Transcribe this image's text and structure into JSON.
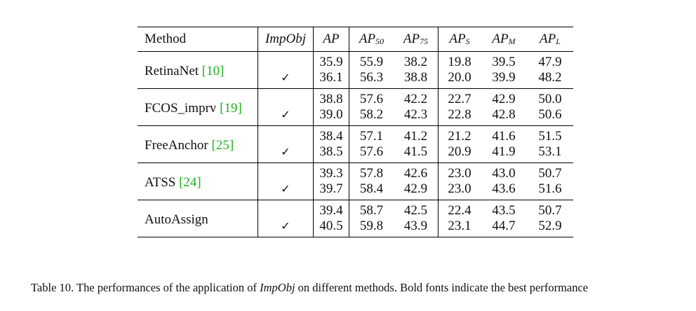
{
  "table": {
    "headers": {
      "method": "Method",
      "impobj": "ImpObj",
      "ap": "AP",
      "ap50_base": "AP",
      "ap50_sub": "50",
      "ap75_base": "AP",
      "ap75_sub": "75",
      "aps_base": "AP",
      "aps_sub": "S",
      "apm_base": "AP",
      "apm_sub": "M",
      "apl_base": "AP",
      "apl_sub": "L"
    },
    "check_mark": "✓",
    "methods": [
      {
        "name": "RetinaNet ",
        "cite": "[10]",
        "rows": [
          {
            "impobj": false,
            "values": [
              "35.9",
              "55.9",
              "38.2",
              "19.8",
              "39.5",
              "47.9"
            ],
            "bold": [
              false,
              false,
              false,
              false,
              false,
              false
            ]
          },
          {
            "impobj": true,
            "values": [
              "36.1",
              "56.3",
              "38.8",
              "20.0",
              "39.9",
              "48.2"
            ],
            "bold": [
              false,
              false,
              false,
              false,
              false,
              false
            ]
          }
        ]
      },
      {
        "name": "FCOS_imprv ",
        "cite": "[19]",
        "rows": [
          {
            "impobj": false,
            "values": [
              "38.8",
              "57.6",
              "42.2",
              "22.7",
              "42.9",
              "50.0"
            ],
            "bold": [
              false,
              false,
              false,
              false,
              false,
              false
            ]
          },
          {
            "impobj": true,
            "values": [
              "39.0",
              "58.2",
              "42.3",
              "22.8",
              "42.8",
              "50.6"
            ],
            "bold": [
              false,
              false,
              false,
              false,
              false,
              false
            ]
          }
        ]
      },
      {
        "name": "FreeAnchor ",
        "cite": "[25]",
        "rows": [
          {
            "impobj": false,
            "values": [
              "38.4",
              "57.1",
              "41.2",
              "21.2",
              "41.6",
              "51.5"
            ],
            "bold": [
              false,
              false,
              false,
              false,
              false,
              false
            ]
          },
          {
            "impobj": true,
            "values": [
              "38.5",
              "57.6",
              "41.5",
              "20.9",
              "41.9",
              "53.1"
            ],
            "bold": [
              false,
              false,
              false,
              false,
              false,
              true
            ]
          }
        ]
      },
      {
        "name": "ATSS ",
        "cite": "[24]",
        "rows": [
          {
            "impobj": false,
            "values": [
              "39.3",
              "57.8",
              "42.6",
              "23.0",
              "43.0",
              "50.7"
            ],
            "bold": [
              false,
              false,
              false,
              false,
              false,
              false
            ]
          },
          {
            "impobj": true,
            "values": [
              "39.7",
              "58.4",
              "42.9",
              "23.0",
              "43.6",
              "51.6"
            ],
            "bold": [
              false,
              false,
              false,
              false,
              false,
              false
            ]
          }
        ]
      },
      {
        "name": "AutoAssign",
        "cite": "",
        "rows": [
          {
            "impobj": false,
            "values": [
              "39.4",
              "58.7",
              "42.5",
              "22.4",
              "43.5",
              "50.7"
            ],
            "bold": [
              false,
              false,
              false,
              false,
              false,
              false
            ]
          },
          {
            "impobj": true,
            "values": [
              "40.5",
              "59.8",
              "43.9",
              "23.1",
              "44.7",
              "52.9"
            ],
            "bold": [
              true,
              true,
              true,
              true,
              true,
              false
            ]
          }
        ]
      }
    ]
  },
  "caption": {
    "prefix": "Table 10. The performances of the application of ",
    "emph": "ImpObj",
    "suffix": " on different methods. Bold fonts indicate the best performance"
  }
}
